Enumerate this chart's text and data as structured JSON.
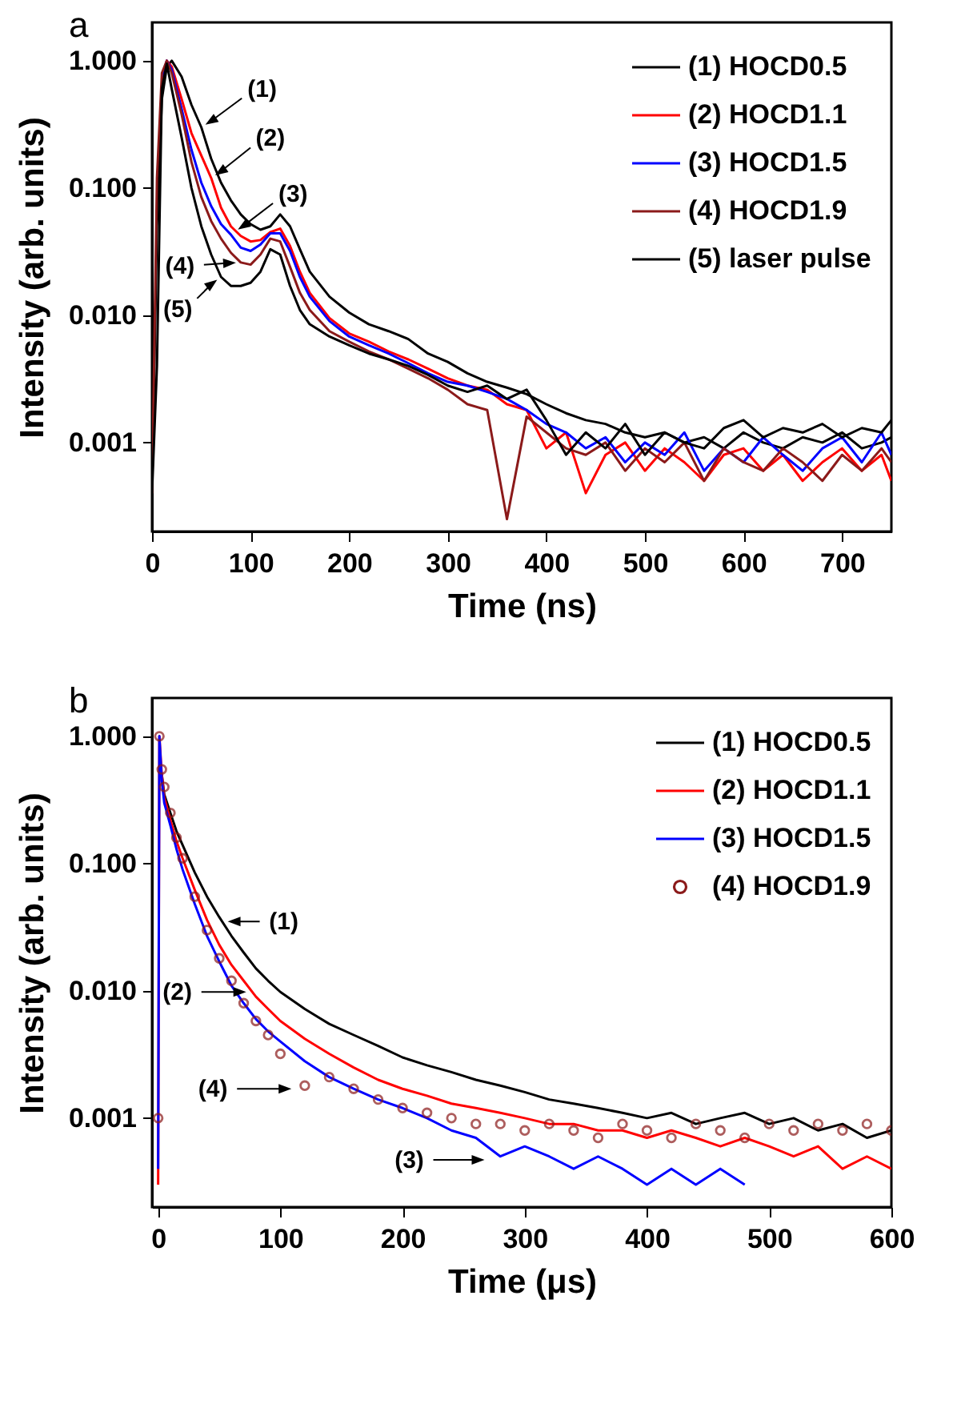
{
  "chart_data": [
    {
      "type": "line",
      "title": "a",
      "xlabel": "Time (ns)",
      "ylabel": "Intensity (arb. units)",
      "log": "y",
      "legend": "top right",
      "x": [
        0,
        5,
        10,
        15,
        20,
        30,
        40,
        50,
        60,
        70,
        80,
        90,
        100,
        110,
        120,
        130,
        140,
        150,
        160,
        180,
        200,
        220,
        240,
        260,
        280,
        300,
        320,
        340,
        360,
        380,
        400,
        420,
        440,
        460,
        480,
        500,
        520,
        540,
        560,
        580,
        600,
        620,
        640,
        660,
        680,
        700,
        720,
        740,
        750
      ],
      "xlim": [
        0,
        750
      ],
      "xticks": [
        0,
        100,
        200,
        300,
        400,
        500,
        600,
        700
      ],
      "ylim": [
        0.0002,
        2
      ],
      "yticks": [
        {
          "value": 1,
          "label": "1.000"
        },
        {
          "value": 0.1,
          "label": "0.100"
        },
        {
          "value": 0.01,
          "label": "0.010"
        },
        {
          "value": 0.001,
          "label": "0.001"
        }
      ],
      "annotations": [
        {
          "text": "(1)",
          "x": 50,
          "y": 0.3
        },
        {
          "text": "(2)",
          "x": 60,
          "y": 0.12
        },
        {
          "text": "(3)",
          "x": 83,
          "y": 0.045
        },
        {
          "text": "(4)",
          "x": 90,
          "y": 0.026
        },
        {
          "text": "(5)",
          "x": 70,
          "y": 0.02
        }
      ],
      "series": [
        {
          "name": "(1) HOCD0.5",
          "color": "#000000",
          "values": [
            0.0004,
            0.05,
            0.5,
            0.9,
            1.0,
            0.75,
            0.45,
            0.3,
            0.17,
            0.11,
            0.08,
            0.062,
            0.052,
            0.047,
            0.05,
            0.062,
            0.05,
            0.033,
            0.022,
            0.014,
            0.0105,
            0.0085,
            0.0075,
            0.0065,
            0.005,
            0.0043,
            0.0035,
            0.003,
            0.0027,
            0.0024,
            0.002,
            0.0017,
            0.0015,
            0.0014,
            0.0012,
            0.0011,
            0.0012,
            0.001,
            0.0011,
            0.0009,
            0.0012,
            0.001,
            0.0009,
            0.0011,
            0.001,
            0.0012,
            0.0009,
            0.001,
            0.0011
          ]
        },
        {
          "name": "(2) HOCD1.1",
          "color": "#ff0000",
          "values": [
            null,
            null,
            0.7,
            1.0,
            0.9,
            0.5,
            0.27,
            0.18,
            0.12,
            0.07,
            0.05,
            0.042,
            0.038,
            0.039,
            0.045,
            0.048,
            0.035,
            0.022,
            0.015,
            0.0095,
            0.0072,
            0.0062,
            0.0052,
            0.0045,
            0.0038,
            0.0032,
            0.0028,
            0.0026,
            0.002,
            0.0018,
            0.0009,
            0.0012,
            0.0004,
            0.0008,
            0.001,
            0.0006,
            0.0009,
            0.0007,
            0.0005,
            0.0008,
            0.0009,
            0.0006,
            0.0008,
            0.0005,
            0.0007,
            0.0009,
            0.0006,
            0.0008,
            0.0005
          ]
        },
        {
          "name": "(3) HOCD1.5",
          "color": "#0000ff",
          "values": [
            null,
            null,
            0.75,
            1.0,
            0.85,
            0.42,
            0.2,
            0.11,
            0.072,
            0.052,
            0.043,
            0.034,
            0.032,
            0.036,
            0.044,
            0.044,
            0.032,
            0.02,
            0.014,
            0.009,
            0.0068,
            0.0058,
            0.005,
            0.0042,
            0.0035,
            0.003,
            0.0028,
            0.0025,
            0.0022,
            0.0018,
            0.0014,
            0.0012,
            0.0009,
            0.0011,
            0.0007,
            0.001,
            0.0008,
            0.0012,
            0.0006,
            0.0009,
            0.0007,
            0.0011,
            0.0008,
            0.0006,
            0.0009,
            0.0011,
            0.0007,
            0.0012,
            0.0008
          ]
        },
        {
          "name": "(4) HOCD1.9",
          "color": "#8b1a1a",
          "values": [
            0.0004,
            0.12,
            0.8,
            1.0,
            0.8,
            0.38,
            0.16,
            0.085,
            0.055,
            0.04,
            0.031,
            0.026,
            0.025,
            0.03,
            0.04,
            0.038,
            0.024,
            0.015,
            0.011,
            0.0075,
            0.0062,
            0.0052,
            0.0045,
            0.0038,
            0.0032,
            0.0026,
            0.002,
            0.0018,
            0.00025,
            0.0016,
            0.0012,
            0.0009,
            0.0008,
            0.001,
            0.0006,
            0.0009,
            0.0007,
            0.001,
            0.0005,
            0.0009,
            0.0007,
            0.0006,
            0.0009,
            0.0007,
            0.0005,
            0.0008,
            0.0006,
            0.0009,
            0.0007
          ]
        },
        {
          "name": "(5) laser pulse",
          "color": "#000000",
          "values": [
            0.0004,
            0.004,
            0.6,
            0.95,
            0.6,
            0.25,
            0.1,
            0.05,
            0.03,
            0.02,
            0.017,
            0.017,
            0.018,
            0.022,
            0.033,
            0.03,
            0.017,
            0.011,
            0.0085,
            0.0068,
            0.0058,
            0.005,
            0.0045,
            0.004,
            0.0034,
            0.0028,
            0.0025,
            0.0028,
            0.0022,
            0.0026,
            0.0015,
            0.0008,
            0.0012,
            0.0009,
            0.0014,
            0.0008,
            0.0012,
            0.001,
            0.0009,
            0.0013,
            0.0015,
            0.0011,
            0.0013,
            0.0012,
            0.0014,
            0.0011,
            0.0013,
            0.0012,
            0.0015
          ]
        }
      ]
    },
    {
      "type": "line",
      "title": "b",
      "xlabel": "Time (μs)",
      "ylabel": "Intensity (arb. units)",
      "log": "y",
      "legend": "top right",
      "x": [
        0,
        1,
        3,
        5,
        10,
        15,
        20,
        30,
        40,
        50,
        60,
        70,
        80,
        90,
        100,
        120,
        140,
        160,
        180,
        200,
        220,
        240,
        260,
        280,
        300,
        320,
        340,
        360,
        380,
        400,
        420,
        440,
        460,
        480,
        500,
        520,
        540,
        560,
        580,
        600
      ],
      "xlim": [
        -5,
        600
      ],
      "xticks": [
        0,
        100,
        200,
        300,
        400,
        500,
        600
      ],
      "ylim": [
        0.0002,
        2
      ],
      "yticks": [
        {
          "value": 1,
          "label": "1.000"
        },
        {
          "value": 0.1,
          "label": "0.100"
        },
        {
          "value": 0.01,
          "label": "0.010"
        },
        {
          "value": 0.001,
          "label": "0.001"
        }
      ],
      "annotations": [
        {
          "text": "(1)",
          "x": 53,
          "y": 0.035
        },
        {
          "text": "(2)",
          "x": 76,
          "y": 0.0098
        },
        {
          "text": "(4)",
          "x": 113,
          "y": 0.0017
        },
        {
          "text": "(3)",
          "x": 271,
          "y": 0.00047
        }
      ],
      "series": [
        {
          "name": "(1) HOCD0.5",
          "color": "#000000",
          "values": [
            null,
            null,
            0.5,
            0.35,
            0.25,
            0.18,
            0.14,
            0.085,
            0.055,
            0.038,
            0.027,
            0.02,
            0.015,
            0.012,
            0.0098,
            0.0072,
            0.0055,
            0.0045,
            0.0037,
            0.003,
            0.0026,
            0.0023,
            0.002,
            0.0018,
            0.0016,
            0.0014,
            0.0013,
            0.0012,
            0.0011,
            0.001,
            0.0011,
            0.0009,
            0.001,
            0.0011,
            0.0009,
            0.001,
            0.0008,
            0.0009,
            0.0007,
            0.0008
          ]
        },
        {
          "name": "(2) HOCD1.1",
          "color": "#ff0000",
          "values": [
            0.0003,
            1.0,
            0.5,
            0.33,
            0.22,
            0.15,
            0.11,
            0.062,
            0.036,
            0.023,
            0.016,
            0.012,
            0.009,
            0.0072,
            0.0058,
            0.0042,
            0.0032,
            0.0025,
            0.002,
            0.0017,
            0.0015,
            0.0013,
            0.0012,
            0.0011,
            0.001,
            0.0009,
            0.0009,
            0.0008,
            0.0008,
            0.0007,
            0.0008,
            0.0007,
            0.0006,
            0.0007,
            0.0006,
            0.0005,
            0.0006,
            0.0004,
            0.0005,
            0.0004
          ]
        },
        {
          "name": "(3) HOCD1.5",
          "color": "#0000ff",
          "values": [
            0.0004,
            1.0,
            0.45,
            0.3,
            0.2,
            0.13,
            0.09,
            0.048,
            0.027,
            0.017,
            0.011,
            0.008,
            0.006,
            0.0048,
            0.004,
            0.0028,
            0.0021,
            0.0017,
            0.0014,
            0.0012,
            0.001,
            0.0008,
            0.0007,
            0.0005,
            0.0006,
            0.0005,
            0.0004,
            0.0005,
            0.0004,
            0.0003,
            0.0004,
            0.0003,
            0.0004,
            0.0003,
            null,
            null,
            null,
            null,
            null,
            null
          ]
        },
        {
          "name": "(4) HOCD1.9",
          "type": "scatter",
          "marker": "circle",
          "color": "#8b1a1a",
          "values": [
            0.001,
            1.0,
            0.55,
            0.4,
            0.25,
            0.16,
            0.11,
            0.055,
            0.03,
            0.018,
            0.012,
            0.008,
            0.0058,
            0.0045,
            0.0032,
            0.0018,
            0.0021,
            0.0017,
            0.0014,
            0.0012,
            0.0011,
            0.001,
            0.0009,
            0.0009,
            0.0008,
            0.0009,
            0.0008,
            0.0007,
            0.0009,
            0.0008,
            0.0007,
            0.0009,
            0.0008,
            0.0007,
            0.0009,
            0.0008,
            0.0009,
            0.0008,
            0.0009,
            0.0008
          ]
        }
      ]
    }
  ]
}
